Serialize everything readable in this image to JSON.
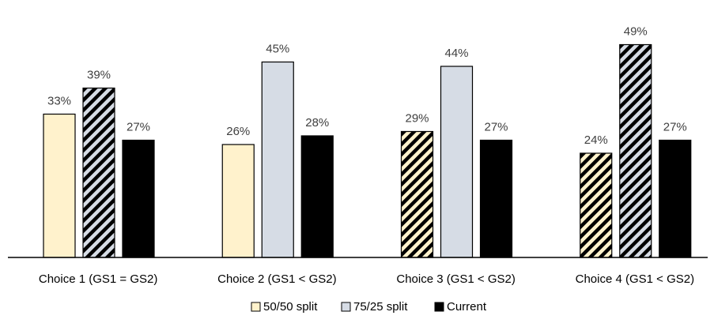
{
  "chart_data": {
    "type": "bar",
    "categories": [
      "Choice 1 (GS1 = GS2)",
      "Choice 2 (GS1 < GS2)",
      "Choice 3 (GS1 < GS2)",
      "Choice 4 (GS1 < GS2)"
    ],
    "series": [
      {
        "name": "50/50 split",
        "values": [
          33,
          26,
          29,
          24
        ],
        "labels": [
          "33%",
          "26%",
          "29%",
          "24%"
        ],
        "fill": "#FFF2CC",
        "hatched": [
          false,
          false,
          true,
          true
        ]
      },
      {
        "name": "75/25 split",
        "values": [
          39,
          45,
          44,
          49
        ],
        "labels": [
          "39%",
          "45%",
          "44%",
          "49%"
        ],
        "fill": "#D6DCE5",
        "hatched": [
          true,
          false,
          false,
          true
        ]
      },
      {
        "name": "Current",
        "values": [
          27,
          28,
          27,
          27
        ],
        "labels": [
          "27%",
          "28%",
          "27%",
          "27%"
        ],
        "fill": "#000000",
        "hatched": [
          false,
          false,
          false,
          false
        ]
      }
    ],
    "ylim": [
      0,
      50
    ],
    "grid": false,
    "legend": "bottom",
    "colors": {
      "bar_stroke": "#000000",
      "hatch_stroke": "#000000",
      "label_text": "#404040",
      "axis_line": "#000000"
    }
  }
}
